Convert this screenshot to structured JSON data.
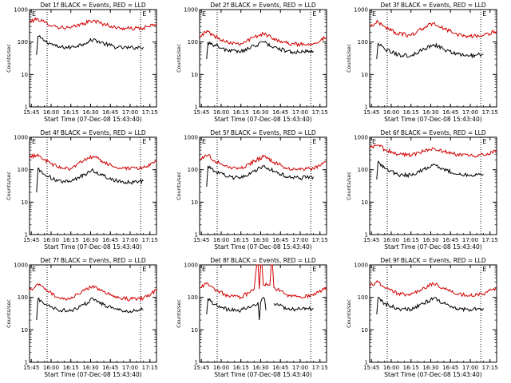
{
  "page": {
    "background": "#ffffff"
  },
  "colors": {
    "events": "#000000",
    "lld": "#d00000",
    "axes": "#000000"
  },
  "panels": [
    {
      "title": "Det 1f BLACK = Events, RED = LLD"
    },
    {
      "title": "Det 2f BLACK = Events, RED = LLD"
    },
    {
      "title": "Det 3f BLACK = Events, RED = LLD"
    },
    {
      "title": "Det 4f BLACK = Events, RED = LLD"
    },
    {
      "title": "Det 5f BLACK = Events, RED = LLD"
    },
    {
      "title": "Det 6f BLACK = Events, RED = LLD"
    },
    {
      "title": "Det 7f BLACK = Events, RED = LLD"
    },
    {
      "title": "Det 8f BLACK = Events, RED = LLD"
    },
    {
      "title": "Det 9f BLACK = Events, RED = LLD"
    }
  ],
  "chart_data": [
    {
      "type": "line",
      "title": "Det 1f BLACK = Events, RED = LLD",
      "xlabel": "Start Time (07-Dec-08 15:43:40)",
      "ylabel": "Counts/sec",
      "x_ticks": [
        "15:45",
        "16:00",
        "16:15",
        "16:30",
        "16:45",
        "17:00",
        "17:15"
      ],
      "y_ticks": [
        "1",
        "10",
        "100",
        "1000"
      ],
      "y_scale": "log",
      "ylim": [
        1,
        1000
      ],
      "xlim": [
        "15:43:40",
        "17:20:00"
      ],
      "markers": [
        "E",
        "E"
      ],
      "dotted_lines": [
        "15:57",
        "17:08"
      ],
      "series": [
        {
          "name": "Events",
          "color": "#000000",
          "x": [
            "15:49",
            "15:50",
            "15:55",
            "16:05",
            "16:15",
            "16:25",
            "16:32",
            "16:40",
            "16:50",
            "17:00",
            "17:05",
            "17:10"
          ],
          "y": [
            40,
            150,
            110,
            70,
            68,
            90,
            120,
            90,
            68,
            66,
            68,
            70
          ]
        },
        {
          "name": "LLD",
          "color": "#d00000",
          "x": [
            "15:43:40",
            "15:50",
            "15:55",
            "16:05",
            "16:15",
            "16:25",
            "16:32",
            "16:40",
            "16:50",
            "17:00",
            "17:10",
            "17:20"
          ],
          "y": [
            420,
            520,
            400,
            290,
            270,
            380,
            460,
            360,
            270,
            260,
            270,
            350
          ]
        }
      ]
    },
    {
      "type": "line",
      "title": "Det 2f BLACK = Events, RED = LLD",
      "xlabel": "Start Time (07-Dec-08 15:43:40)",
      "ylabel": "Counts/sec",
      "x_ticks": [
        "15:45",
        "16:00",
        "16:15",
        "16:30",
        "16:45",
        "17:00",
        "17:15"
      ],
      "y_ticks": [
        "1",
        "10",
        "100",
        "1000"
      ],
      "y_scale": "log",
      "ylim": [
        1,
        1000
      ],
      "xlim": [
        "15:43:40",
        "17:20:00"
      ],
      "markers": [
        "E",
        "E"
      ],
      "dotted_lines": [
        "15:57",
        "17:08"
      ],
      "series": [
        {
          "name": "Events",
          "color": "#000000",
          "x": [
            "15:49",
            "15:50",
            "15:55",
            "16:05",
            "16:15",
            "16:25",
            "16:32",
            "16:40",
            "16:50",
            "17:00",
            "17:05",
            "17:10"
          ],
          "y": [
            30,
            100,
            80,
            55,
            50,
            75,
            100,
            70,
            52,
            48,
            50,
            52
          ]
        },
        {
          "name": "LLD",
          "color": "#d00000",
          "x": [
            "15:43:40",
            "15:50",
            "15:55",
            "16:05",
            "16:15",
            "16:25",
            "16:32",
            "16:40",
            "16:50",
            "17:00",
            "17:10",
            "17:20"
          ],
          "y": [
            160,
            210,
            150,
            100,
            90,
            140,
            180,
            130,
            90,
            85,
            90,
            140
          ]
        }
      ]
    },
    {
      "type": "line",
      "title": "Det 3f BLACK = Events, RED = LLD",
      "xlabel": "Start Time (07-Dec-08 15:43:40)",
      "ylabel": "Counts/sec",
      "x_ticks": [
        "15:45",
        "16:00",
        "16:15",
        "16:30",
        "16:45",
        "17:00",
        "17:15"
      ],
      "y_ticks": [
        "1",
        "10",
        "100",
        "1000"
      ],
      "y_scale": "log",
      "ylim": [
        1,
        1000
      ],
      "xlim": [
        "15:43:40",
        "17:20:00"
      ],
      "markers": [
        "E",
        "E"
      ],
      "dotted_lines": [
        "15:57",
        "17:08"
      ],
      "series": [
        {
          "name": "Events",
          "color": "#000000",
          "x": [
            "15:49",
            "15:50",
            "15:55",
            "16:05",
            "16:15",
            "16:25",
            "16:32",
            "16:40",
            "16:50",
            "17:00",
            "17:05",
            "17:10"
          ],
          "y": [
            30,
            90,
            60,
            40,
            38,
            60,
            85,
            60,
            42,
            38,
            40,
            42
          ]
        },
        {
          "name": "LLD",
          "color": "#d00000",
          "x": [
            "15:43:40",
            "15:50",
            "15:55",
            "16:05",
            "16:15",
            "16:25",
            "16:32",
            "16:40",
            "16:50",
            "17:00",
            "17:10",
            "17:20"
          ],
          "y": [
            300,
            420,
            300,
            180,
            160,
            280,
            380,
            260,
            170,
            150,
            160,
            220
          ]
        }
      ]
    },
    {
      "type": "line",
      "title": "Det 4f BLACK = Events, RED = LLD",
      "xlabel": "Start Time (07-Dec-08 15:43:40)",
      "ylabel": "Counts/sec",
      "x_ticks": [
        "15:45",
        "16:00",
        "16:15",
        "16:30",
        "16:45",
        "17:00",
        "17:15"
      ],
      "y_ticks": [
        "1",
        "10",
        "100",
        "1000"
      ],
      "y_scale": "log",
      "ylim": [
        1,
        1000
      ],
      "xlim": [
        "15:43:40",
        "17:20:00"
      ],
      "markers": [
        "E",
        "E"
      ],
      "dotted_lines": [
        "15:57",
        "17:08"
      ],
      "series": [
        {
          "name": "Events",
          "color": "#000000",
          "x": [
            "15:49",
            "15:50",
            "15:55",
            "16:05",
            "16:15",
            "16:25",
            "16:32",
            "16:40",
            "16:50",
            "17:00",
            "17:05",
            "17:10"
          ],
          "y": [
            20,
            110,
            70,
            45,
            42,
            70,
            95,
            65,
            45,
            40,
            42,
            45
          ]
        },
        {
          "name": "LLD",
          "color": "#d00000",
          "x": [
            "15:43:40",
            "15:50",
            "15:55",
            "16:05",
            "16:15",
            "16:25",
            "16:32",
            "16:40",
            "16:50",
            "17:00",
            "17:10",
            "17:20"
          ],
          "y": [
            230,
            300,
            200,
            120,
            110,
            190,
            260,
            170,
            115,
            105,
            115,
            180
          ]
        }
      ]
    },
    {
      "type": "line",
      "title": "Det 5f BLACK = Events, RED = LLD",
      "xlabel": "Start Time (07-Dec-08 15:43:40)",
      "ylabel": "Counts/sec",
      "x_ticks": [
        "15:45",
        "16:00",
        "16:15",
        "16:30",
        "16:45",
        "17:00",
        "17:15"
      ],
      "y_ticks": [
        "1",
        "10",
        "100",
        "1000"
      ],
      "y_scale": "log",
      "ylim": [
        1,
        1000
      ],
      "xlim": [
        "15:43:40",
        "17:20:00"
      ],
      "markers": [
        "E",
        "E"
      ],
      "dotted_lines": [
        "15:57",
        "17:08"
      ],
      "series": [
        {
          "name": "Events",
          "color": "#000000",
          "x": [
            "15:49",
            "15:50",
            "15:55",
            "16:05",
            "16:15",
            "16:25",
            "16:32",
            "16:40",
            "16:50",
            "17:00",
            "17:05",
            "17:10"
          ],
          "y": [
            30,
            130,
            90,
            60,
            55,
            90,
            130,
            90,
            60,
            55,
            58,
            60
          ]
        },
        {
          "name": "LLD",
          "color": "#d00000",
          "x": [
            "15:43:40",
            "15:50",
            "15:55",
            "16:05",
            "16:15",
            "16:25",
            "16:32",
            "16:40",
            "16:50",
            "17:00",
            "17:10",
            "17:20"
          ],
          "y": [
            220,
            280,
            190,
            120,
            110,
            180,
            250,
            170,
            110,
            100,
            110,
            180
          ]
        }
      ]
    },
    {
      "type": "line",
      "title": "Det 6f BLACK = Events, RED = LLD",
      "xlabel": "Start Time (07-Dec-08 15:43:40)",
      "ylabel": "Counts/sec",
      "x_ticks": [
        "15:45",
        "16:00",
        "16:15",
        "16:30",
        "16:45",
        "17:00",
        "17:15"
      ],
      "y_ticks": [
        "1",
        "10",
        "100",
        "1000"
      ],
      "y_scale": "log",
      "ylim": [
        1,
        1000
      ],
      "xlim": [
        "15:43:40",
        "17:20:00"
      ],
      "markers": [
        "E",
        "E"
      ],
      "dotted_lines": [
        "15:57",
        "17:08"
      ],
      "series": [
        {
          "name": "Events",
          "color": "#000000",
          "x": [
            "15:49",
            "15:50",
            "15:55",
            "16:05",
            "16:15",
            "16:25",
            "16:32",
            "16:40",
            "16:50",
            "17:00",
            "17:05",
            "17:10"
          ],
          "y": [
            50,
            180,
            110,
            70,
            68,
            105,
            150,
            105,
            72,
            68,
            70,
            72
          ]
        },
        {
          "name": "LLD",
          "color": "#d00000",
          "x": [
            "15:43:40",
            "15:50",
            "15:55",
            "16:05",
            "16:15",
            "16:25",
            "16:32",
            "16:40",
            "16:50",
            "17:00",
            "17:10",
            "17:20"
          ],
          "y": [
            480,
            580,
            420,
            300,
            280,
            380,
            460,
            370,
            290,
            270,
            280,
            380
          ]
        }
      ]
    },
    {
      "type": "line",
      "title": "Det 7f BLACK = Events, RED = LLD",
      "xlabel": "Start Time (07-Dec-08 15:43:40)",
      "ylabel": "Counts/sec",
      "x_ticks": [
        "15:45",
        "16:00",
        "16:15",
        "16:30",
        "16:45",
        "17:00",
        "17:15"
      ],
      "y_ticks": [
        "1",
        "10",
        "100",
        "1000"
      ],
      "y_scale": "log",
      "ylim": [
        1,
        1000
      ],
      "xlim": [
        "15:43:40",
        "17:20:00"
      ],
      "markers": [
        "E",
        "E"
      ],
      "dotted_lines": [
        "15:57",
        "17:08"
      ],
      "series": [
        {
          "name": "Events",
          "color": "#000000",
          "x": [
            "15:49",
            "15:50",
            "15:55",
            "16:05",
            "16:15",
            "16:25",
            "16:32",
            "16:40",
            "16:50",
            "17:00",
            "17:05",
            "17:10"
          ],
          "y": [
            20,
            90,
            60,
            42,
            38,
            60,
            90,
            60,
            42,
            38,
            40,
            42
          ]
        },
        {
          "name": "LLD",
          "color": "#d00000",
          "x": [
            "15:43:40",
            "15:50",
            "15:55",
            "16:05",
            "16:15",
            "16:25",
            "16:32",
            "16:40",
            "16:50",
            "17:00",
            "17:10",
            "17:20"
          ],
          "y": [
            160,
            260,
            180,
            100,
            90,
            160,
            230,
            150,
            95,
            88,
            95,
            160
          ]
        }
      ]
    },
    {
      "type": "line",
      "title": "Det 8f BLACK = Events, RED = LLD",
      "xlabel": "Start Time (07-Dec-08 15:43:40)",
      "ylabel": "Counts/sec",
      "x_ticks": [
        "15:45",
        "16:00",
        "16:15",
        "16:30",
        "16:45",
        "17:00",
        "17:15"
      ],
      "y_ticks": [
        "1",
        "10",
        "100",
        "1000"
      ],
      "y_scale": "log",
      "ylim": [
        1,
        1000
      ],
      "xlim": [
        "15:43:40",
        "17:20:00"
      ],
      "markers": [
        "E",
        "E"
      ],
      "dotted_lines": [
        "15:57",
        "17:08"
      ],
      "series": [
        {
          "name": "Events",
          "color": "#000000",
          "x": [
            "15:49",
            "15:50",
            "15:55",
            "16:05",
            "16:15",
            "16:25",
            "16:28",
            "16:29",
            "16:30",
            "16:31",
            "16:32",
            "16:33",
            "16:34",
            "16:38",
            "16:40",
            "16:50",
            "17:00",
            "17:05",
            "17:10"
          ],
          "y": [
            30,
            90,
            60,
            42,
            40,
            60,
            70,
            20,
            70,
            90,
            100,
            90,
            40,
            null,
            65,
            45,
            42,
            44,
            46
          ]
        },
        {
          "name": "LLD",
          "color": "#d00000",
          "x": [
            "15:43:40",
            "15:50",
            "15:55",
            "16:05",
            "16:15",
            "16:25",
            "16:27",
            "16:28",
            "16:29",
            "16:30",
            "16:31",
            "16:32",
            "16:37",
            "16:38",
            "16:39",
            "16:40",
            "16:50",
            "17:00",
            "17:10",
            "17:20"
          ],
          "y": [
            200,
            270,
            180,
            110,
            100,
            180,
            1000,
            1000,
            180,
            1000,
            1000,
            240,
            240,
            1000,
            1000,
            200,
            120,
            105,
            115,
            200
          ]
        }
      ]
    },
    {
      "type": "line",
      "title": "Det 9f BLACK = Events, RED = LLD",
      "xlabel": "Start Time (07-Dec-08 15:43:40)",
      "ylabel": "Counts/sec",
      "x_ticks": [
        "15:45",
        "16:00",
        "16:15",
        "16:30",
        "16:45",
        "17:00",
        "17:15"
      ],
      "y_ticks": [
        "1",
        "10",
        "100",
        "1000"
      ],
      "y_scale": "log",
      "ylim": [
        1,
        1000
      ],
      "xlim": [
        "15:43:40",
        "17:20:00"
      ],
      "markers": [
        "E",
        "E"
      ],
      "dotted_lines": [
        "15:57",
        "17:08"
      ],
      "series": [
        {
          "name": "Events",
          "color": "#000000",
          "x": [
            "15:49",
            "15:50",
            "15:55",
            "16:05",
            "16:15",
            "16:25",
            "16:32",
            "16:40",
            "16:50",
            "17:00",
            "17:05",
            "17:10"
          ],
          "y": [
            30,
            100,
            65,
            45,
            42,
            65,
            95,
            65,
            45,
            42,
            44,
            46
          ]
        },
        {
          "name": "LLD",
          "color": "#d00000",
          "x": [
            "15:43:40",
            "15:50",
            "15:55",
            "16:05",
            "16:15",
            "16:25",
            "16:32",
            "16:40",
            "16:50",
            "17:00",
            "17:10",
            "17:20"
          ],
          "y": [
            220,
            300,
            200,
            130,
            120,
            200,
            270,
            190,
            125,
            115,
            125,
            200
          ]
        }
      ]
    }
  ]
}
